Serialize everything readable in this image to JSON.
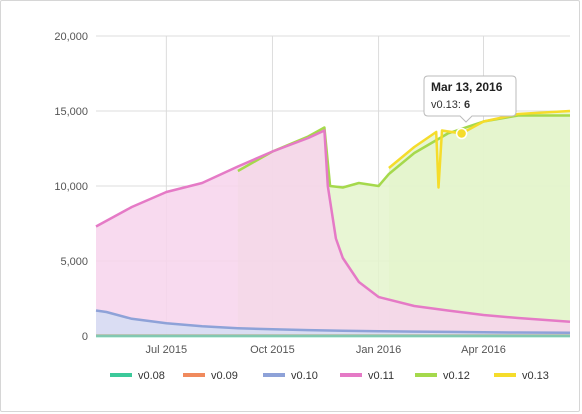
{
  "chart_data": {
    "type": "area",
    "x_axis": {
      "type": "date",
      "ticks": [
        {
          "date": "2015-07-01",
          "label": "Jul 2015"
        },
        {
          "date": "2015-10-01",
          "label": "Oct 2015"
        },
        {
          "date": "2016-01-01",
          "label": "Jan 2016"
        },
        {
          "date": "2016-04-01",
          "label": "Apr 2016"
        }
      ],
      "range": [
        "2015-05-01",
        "2016-06-15"
      ]
    },
    "y_axis": {
      "ylim": [
        0,
        20000
      ],
      "ticks": [
        {
          "value": 0,
          "label": "0"
        },
        {
          "value": 5000,
          "label": "5,000"
        },
        {
          "value": 10000,
          "label": "10,000"
        },
        {
          "value": 15000,
          "label": "15,000"
        },
        {
          "value": 20000,
          "label": "20,000"
        }
      ]
    },
    "grid": true,
    "legend_position": "bottom",
    "series": [
      {
        "name": "v0.08",
        "color": "#3cc99a",
        "fill": "#b9ecd9",
        "points": [
          [
            "2015-05-01",
            0
          ],
          [
            "2016-06-15",
            0
          ]
        ]
      },
      {
        "name": "v0.09",
        "color": "#f08a5d",
        "fill": "#fbd6c4",
        "points": [
          [
            "2015-05-01",
            20
          ],
          [
            "2016-06-15",
            20
          ]
        ]
      },
      {
        "name": "v0.10",
        "color": "#8ea2d8",
        "fill": "#d5ddf3",
        "points": [
          [
            "2015-05-01",
            1700
          ],
          [
            "2015-05-10",
            1600
          ],
          [
            "2015-06-01",
            1150
          ],
          [
            "2015-07-01",
            850
          ],
          [
            "2015-08-01",
            650
          ],
          [
            "2015-09-01",
            520
          ],
          [
            "2015-10-01",
            450
          ],
          [
            "2015-11-01",
            390
          ],
          [
            "2015-12-01",
            350
          ],
          [
            "2016-01-01",
            320
          ],
          [
            "2016-02-01",
            290
          ],
          [
            "2016-03-01",
            270
          ],
          [
            "2016-04-01",
            250
          ],
          [
            "2016-05-01",
            235
          ],
          [
            "2016-06-15",
            220
          ]
        ]
      },
      {
        "name": "v0.11",
        "color": "#e57ac6",
        "fill": "#f7d3ec",
        "points": [
          [
            "2015-05-01",
            7300
          ],
          [
            "2015-06-01",
            8600
          ],
          [
            "2015-07-01",
            9600
          ],
          [
            "2015-08-01",
            10200
          ],
          [
            "2015-09-01",
            11300
          ],
          [
            "2015-10-01",
            12300
          ],
          [
            "2015-11-01",
            13200
          ],
          [
            "2015-11-15",
            13700
          ],
          [
            "2015-11-18",
            10000
          ],
          [
            "2015-11-25",
            6500
          ],
          [
            "2015-12-01",
            5200
          ],
          [
            "2015-12-15",
            3600
          ],
          [
            "2016-01-01",
            2600
          ],
          [
            "2016-02-01",
            2000
          ],
          [
            "2016-03-01",
            1700
          ],
          [
            "2016-04-01",
            1400
          ],
          [
            "2016-05-01",
            1200
          ],
          [
            "2016-06-15",
            950
          ]
        ]
      },
      {
        "name": "v0.12",
        "color": "#a5d94c",
        "fill": "#e4f4cc",
        "points": [
          [
            "2015-09-01",
            11000
          ],
          [
            "2015-10-01",
            12300
          ],
          [
            "2015-11-01",
            13300
          ],
          [
            "2015-11-15",
            13900
          ],
          [
            "2015-11-20",
            10000
          ],
          [
            "2015-12-01",
            9900
          ],
          [
            "2015-12-15",
            10200
          ],
          [
            "2016-01-01",
            10000
          ],
          [
            "2016-01-10",
            10800
          ],
          [
            "2016-02-01",
            12200
          ],
          [
            "2016-03-01",
            13500
          ],
          [
            "2016-04-01",
            14300
          ],
          [
            "2016-05-01",
            14700
          ],
          [
            "2016-06-15",
            14700
          ]
        ]
      },
      {
        "name": "v0.13",
        "color": "#f5dc2b",
        "fill": "#e4f4cc",
        "points": [
          [
            "2016-01-10",
            11200
          ],
          [
            "2016-02-01",
            12600
          ],
          [
            "2016-02-20",
            13600
          ],
          [
            "2016-02-22",
            9900
          ],
          [
            "2016-02-25",
            13700
          ],
          [
            "2016-03-13",
            13500
          ],
          [
            "2016-04-01",
            14300
          ],
          [
            "2016-05-01",
            14800
          ],
          [
            "2016-06-15",
            15000
          ]
        ]
      }
    ],
    "tooltip": {
      "date_label": "Mar 13, 2016",
      "series": "v0.13",
      "value_text": "6",
      "anchor_date": "2016-03-13",
      "anchor_value": 13500
    }
  }
}
